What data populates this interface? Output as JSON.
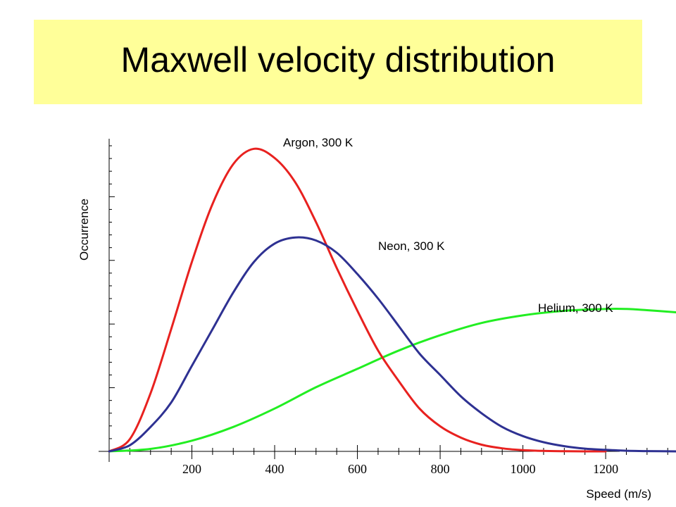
{
  "title": "Maxwell velocity distribution",
  "chart_data": {
    "type": "line",
    "title": "Maxwell velocity distribution",
    "xlabel": "Speed (m/s)",
    "ylabel": "Occurrence",
    "xlim": [
      0,
      1370
    ],
    "ylim": [
      0,
      1
    ],
    "x_ticks": [
      200,
      400,
      600,
      800,
      1000,
      1200
    ],
    "x_tick_labels": [
      "200",
      "400",
      "600",
      "800",
      "1000",
      "1200"
    ],
    "y_tick_labels": [],
    "grid": false,
    "legend": "none (series labelled directly on curves)",
    "series": [
      {
        "name": "Argon, 300 K",
        "color": "#e8211f",
        "x": [
          0,
          50,
          100,
          150,
          200,
          250,
          300,
          350,
          400,
          450,
          500,
          550,
          600,
          650,
          700,
          750,
          800,
          850,
          900,
          950,
          1000,
          1050,
          1100,
          1150,
          1200
        ],
        "y": [
          0,
          0.04,
          0.19,
          0.4,
          0.62,
          0.81,
          0.94,
          0.99,
          0.96,
          0.88,
          0.75,
          0.6,
          0.46,
          0.33,
          0.23,
          0.14,
          0.082,
          0.045,
          0.022,
          0.01,
          0.004,
          0.0015,
          0.0005,
          0.0001,
          0
        ]
      },
      {
        "name": "Neon, 300 K",
        "color": "#2e3192",
        "x": [
          0,
          50,
          100,
          150,
          200,
          250,
          300,
          350,
          400,
          450,
          500,
          550,
          600,
          650,
          700,
          750,
          800,
          850,
          900,
          950,
          1000,
          1050,
          1100,
          1150,
          1200,
          1250,
          1300,
          1370
        ],
        "y": [
          0,
          0.02,
          0.08,
          0.16,
          0.28,
          0.4,
          0.52,
          0.62,
          0.68,
          0.7,
          0.69,
          0.65,
          0.58,
          0.5,
          0.41,
          0.32,
          0.25,
          0.18,
          0.125,
          0.08,
          0.05,
          0.03,
          0.017,
          0.009,
          0.005,
          0.002,
          0.001,
          0
        ]
      },
      {
        "name": "Helium, 300 K",
        "color": "#22ee22",
        "x": [
          0,
          100,
          200,
          300,
          400,
          500,
          600,
          700,
          800,
          900,
          1000,
          1100,
          1200,
          1250,
          1300,
          1370
        ],
        "y": [
          0,
          0.008,
          0.035,
          0.08,
          0.14,
          0.21,
          0.27,
          0.33,
          0.38,
          0.42,
          0.445,
          0.46,
          0.466,
          0.466,
          0.462,
          0.455
        ]
      }
    ]
  }
}
